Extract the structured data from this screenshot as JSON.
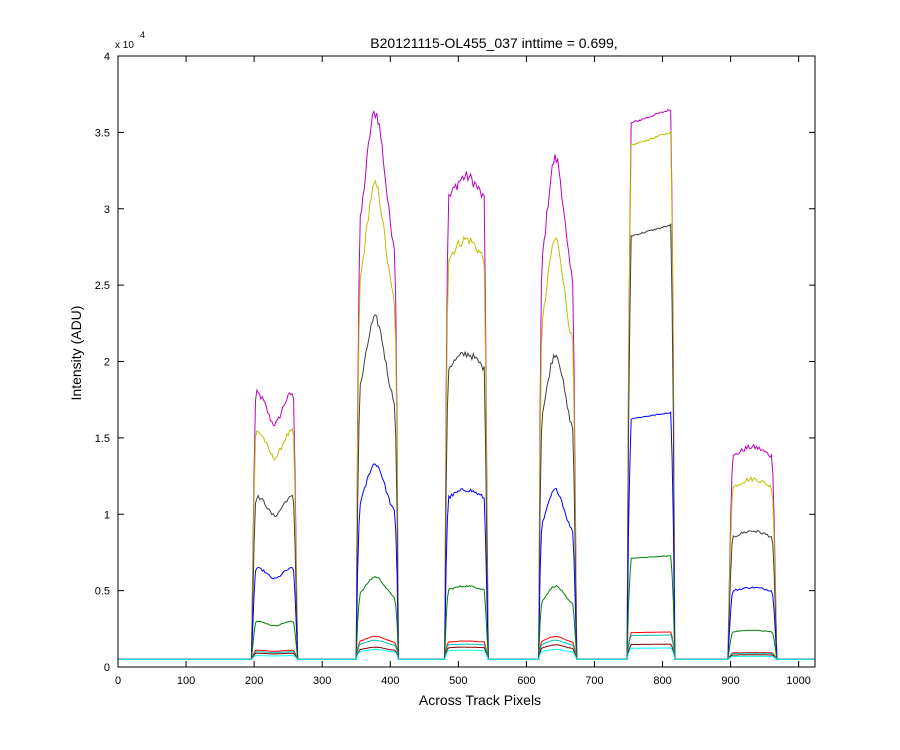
{
  "chart_data": {
    "type": "line",
    "title": "B20121115-OL455_037 inttime = 0.699,",
    "xlabel": "Across Track Pixels",
    "ylabel": "Intensity (ADU)",
    "y_multiplier_label": "x 10",
    "y_multiplier_exponent": "4",
    "xlim": [
      0,
      1024
    ],
    "ylim": [
      0,
      40000
    ],
    "x_ticks": [
      0,
      100,
      200,
      300,
      400,
      500,
      600,
      700,
      800,
      900,
      1000
    ],
    "x_tick_labels": [
      "0",
      "100",
      "200",
      "300",
      "400",
      "500",
      "600",
      "700",
      "800",
      "900",
      "1000"
    ],
    "y_ticks": [
      0,
      5000,
      10000,
      15000,
      20000,
      25000,
      30000,
      35000,
      40000
    ],
    "y_tick_labels": [
      "0",
      "0.5",
      "1",
      "1.5",
      "2",
      "2.5",
      "3",
      "3.5",
      "4"
    ],
    "grid": false,
    "baseline": 500,
    "windows": [
      {
        "x0": 197,
        "x1": 263,
        "shape": "dip",
        "dip_depth": 0.12
      },
      {
        "x0": 350,
        "x1": 412,
        "shape": "peak",
        "dip_depth": 0
      },
      {
        "x0": 480,
        "x1": 543,
        "shape": "flat",
        "dip_depth": 0
      },
      {
        "x0": 618,
        "x1": 673,
        "shape": "peak",
        "dip_depth": 0
      },
      {
        "x0": 748,
        "x1": 818,
        "shape": "ramp",
        "dip_depth": 0
      },
      {
        "x0": 897,
        "x1": 967,
        "shape": "flat",
        "dip_depth": 0
      }
    ],
    "series": [
      {
        "color": "#bf00bf",
        "peaks": [
          18000,
          36300,
          32100,
          33300,
          36600,
          14400
        ]
      },
      {
        "color": "#bfbf00",
        "peaks": [
          15500,
          31500,
          28000,
          28000,
          35100,
          12300
        ]
      },
      {
        "color": "#404040",
        "peaks": [
          11200,
          22800,
          20500,
          20500,
          29000,
          8900
        ]
      },
      {
        "color": "#0000ff",
        "peaks": [
          6500,
          13300,
          11600,
          11600,
          16700,
          5200
        ]
      },
      {
        "color": "#008000",
        "peaks": [
          3000,
          5900,
          5300,
          5300,
          7300,
          2400
        ]
      },
      {
        "color": "#ff0000",
        "peaks": [
          1100,
          2000,
          1700,
          2000,
          2300,
          950
        ]
      },
      {
        "color": "#00bfbf",
        "peaks": [
          1000,
          1750,
          1500,
          1750,
          2100,
          900
        ]
      },
      {
        "color": "#800000",
        "peaks": [
          900,
          1300,
          1300,
          1450,
          1500,
          800
        ]
      },
      {
        "color": "#00ffff",
        "peaks": [
          750,
          1150,
          1100,
          1150,
          1250,
          700
        ]
      }
    ]
  }
}
